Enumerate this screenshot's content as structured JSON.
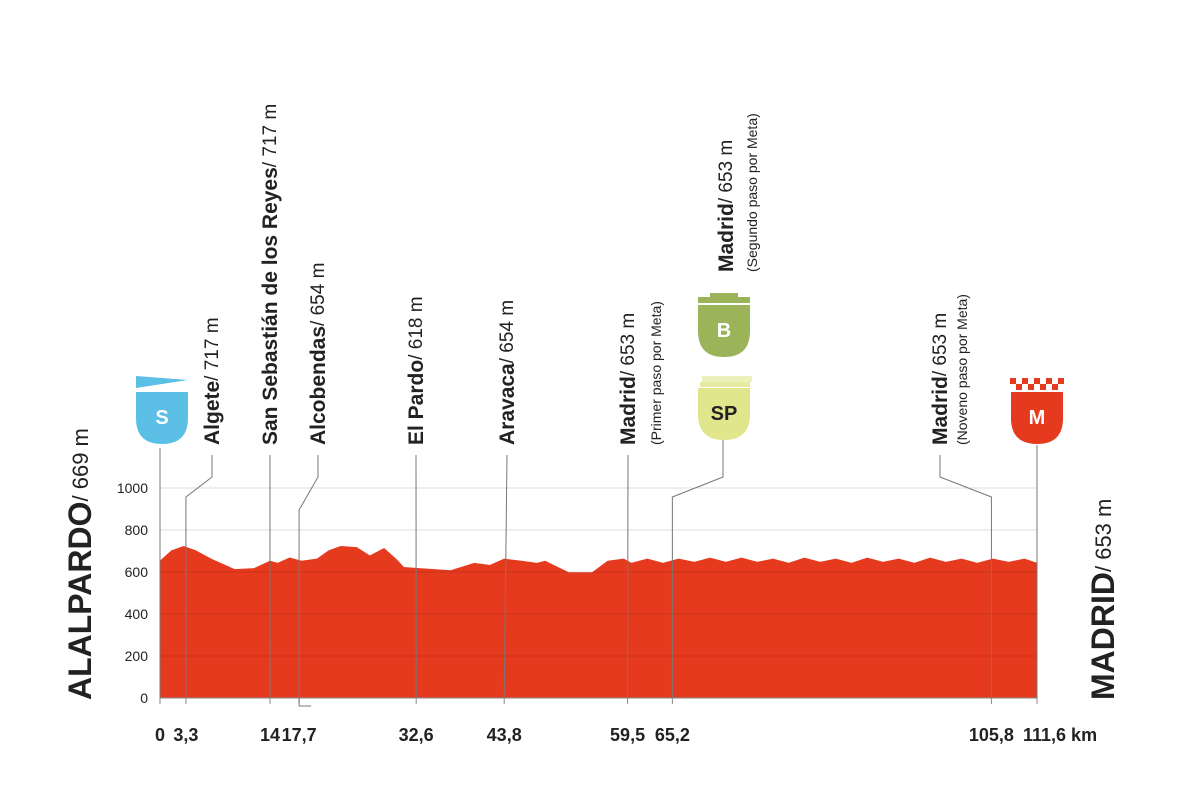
{
  "chart_data": {
    "type": "area",
    "x": [
      0,
      1.5,
      3,
      4.5,
      6.5,
      9.5,
      12,
      14,
      15,
      16.5,
      18,
      20,
      21.5,
      23,
      25,
      26.7,
      28.5,
      30,
      31,
      33,
      37,
      40,
      42,
      43.8,
      46,
      48,
      49,
      52,
      55,
      57,
      59,
      60,
      62,
      64,
      66,
      68,
      70,
      72,
      74,
      76,
      78,
      80,
      82,
      84,
      86,
      88,
      90,
      92,
      94,
      96,
      98,
      100,
      102,
      104,
      106,
      108,
      110,
      111.6
    ],
    "y": [
      650,
      700,
      720,
      700,
      660,
      610,
      615,
      650,
      640,
      665,
      650,
      660,
      700,
      720,
      715,
      675,
      710,
      660,
      620,
      615,
      605,
      640,
      630,
      660,
      650,
      640,
      650,
      595,
      595,
      650,
      660,
      640,
      660,
      640,
      660,
      645,
      665,
      645,
      665,
      645,
      660,
      640,
      665,
      645,
      660,
      640,
      665,
      645,
      660,
      640,
      665,
      645,
      660,
      640,
      660,
      645,
      660,
      640
    ],
    "color": "#e63a1f",
    "xlim": [
      0,
      111.6
    ],
    "ylim": [
      0,
      1000
    ],
    "yticks": [
      0,
      200,
      400,
      600,
      800,
      1000
    ],
    "xticks": [
      0,
      {
        "value": 3.3,
        "label": "3,3"
      },
      14,
      {
        "value": 17.7,
        "label": "17,7"
      },
      {
        "value": 32.6,
        "label": "32,6"
      },
      {
        "value": 43.8,
        "label": "43,8"
      },
      {
        "value": 59.5,
        "label": "59,5"
      },
      {
        "value": 65.2,
        "label": "65,2"
      },
      {
        "value": 105.8,
        "label": "105,8"
      },
      {
        "value": 111.6,
        "label": "111,6 km"
      }
    ],
    "grid": true,
    "start": {
      "name": "ALALPARDO",
      "elevation": "/ 669 m"
    },
    "finish": {
      "name": "MADRID",
      "elevation": "/ 653 m"
    },
    "annotations": [
      {
        "name": "Algete",
        "elevation": "/ 717 m"
      },
      {
        "name": "San Sebastián de los Reyes",
        "elevation": "/ 717 m"
      },
      {
        "name": "Alcobendas",
        "elevation": "/ 654 m"
      },
      {
        "name": "El Pardo",
        "elevation": "/ 618 m"
      },
      {
        "name": "Aravaca",
        "elevation": "/ 654 m"
      },
      {
        "name": "Madrid",
        "elevation": "/ 653 m",
        "note": "(Primer paso por Meta)"
      },
      {
        "name": "Madrid",
        "elevation": "/ 653 m",
        "note": "(Segundo paso por Meta)"
      },
      {
        "name": "Madrid",
        "elevation": "/ 653 m",
        "note": "(Noveno paso por Meta)"
      }
    ],
    "badges": [
      {
        "label": "S",
        "color": "#5bbfe6"
      },
      {
        "label": "B",
        "color": "#9bb45a"
      },
      {
        "label": "SP",
        "color": "#dfe68c"
      },
      {
        "label": "M",
        "color": "#e63a1f"
      }
    ]
  }
}
